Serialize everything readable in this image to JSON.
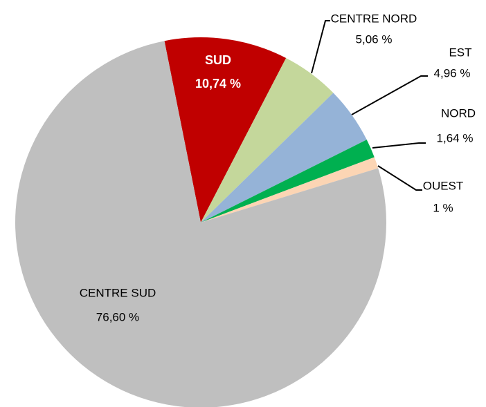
{
  "chart_data": {
    "type": "pie",
    "categories": [
      "SUD",
      "CENTRE NORD",
      "EST",
      "NORD",
      "OUEST",
      "CENTRE SUD"
    ],
    "values": [
      10.74,
      5.06,
      4.96,
      1.64,
      1,
      76.6
    ],
    "value_labels": [
      "10,74 %",
      "5,06 %",
      "4,96 %",
      "1,64 %",
      "1 %",
      "76,60 %"
    ],
    "colors": [
      "#c00000",
      "#c4d79b",
      "#95b3d7",
      "#00b050",
      "#fcd5b4",
      "#bfbfbf"
    ]
  }
}
